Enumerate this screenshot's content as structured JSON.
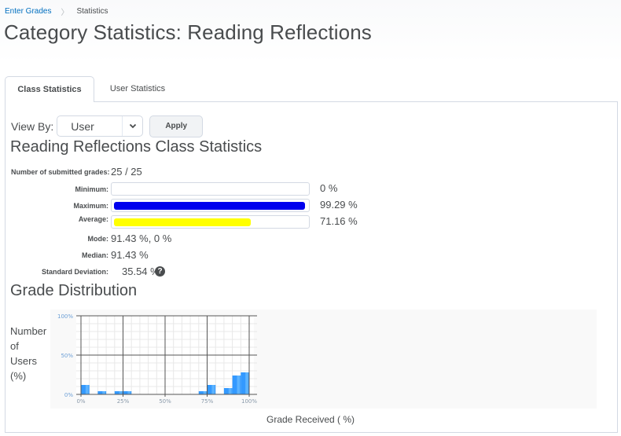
{
  "breadcrumb": {
    "items": [
      {
        "label": "Enter Grades",
        "link": true
      },
      {
        "label": "Statistics",
        "link": false
      }
    ],
    "separator": "〉"
  },
  "page_title": "Category Statistics: Reading Reflections",
  "tabs": [
    {
      "label": "Class Statistics",
      "active": true
    },
    {
      "label": "User Statistics",
      "active": false
    }
  ],
  "view_by": {
    "label": "View By:",
    "selected": "User",
    "apply_label": "Apply"
  },
  "class_stats": {
    "title": "Reading Reflections Class Statistics",
    "submitted_label": "Number of submitted grades:",
    "submitted_value": "25 / 25",
    "minimum_label": "Minimum:",
    "minimum_value": "0 %",
    "minimum_pct": 0,
    "maximum_label": "Maximum:",
    "maximum_value": "99.29 %",
    "maximum_pct": 99.29,
    "maximum_color": "#0000ee",
    "average_label": "Average:",
    "average_value": "71.16 %",
    "average_pct": 71.16,
    "average_color": "#ffff00",
    "mode_label": "Mode:",
    "mode_value": "91.43 %, 0 %",
    "median_label": "Median:",
    "median_value": "91.43 %",
    "std_label": "Standard Deviation:",
    "std_value": "35.54 %",
    "help_icon": "question-circle-icon"
  },
  "distribution": {
    "title": "Grade Distribution",
    "y_title": "Number of Users (%)",
    "y_title_lines": [
      "Number",
      "of",
      "Users",
      "(%)"
    ],
    "x_title": "Grade Received ( %)"
  },
  "chart_data": {
    "type": "bar",
    "title": "Grade Distribution",
    "xlabel": "Grade Received ( %)",
    "ylabel": "Number of Users (%)",
    "x_ticks": [
      "0%",
      "25%",
      "50%",
      "75%",
      "100%"
    ],
    "y_ticks": [
      "0%",
      "50%",
      "100%"
    ],
    "ylim": [
      0,
      100
    ],
    "xlim": [
      0,
      100
    ],
    "bin_width": 5,
    "categories": [
      "0-5",
      "5-10",
      "10-15",
      "15-20",
      "20-25",
      "25-30",
      "30-35",
      "35-40",
      "40-45",
      "45-50",
      "50-55",
      "55-60",
      "60-65",
      "65-70",
      "70-75",
      "75-80",
      "80-85",
      "85-90",
      "90-95",
      "95-100"
    ],
    "values": [
      12,
      0,
      4,
      0,
      4,
      4,
      0,
      0,
      0,
      0,
      0,
      0,
      0,
      0,
      4,
      12,
      0,
      8,
      24,
      28
    ],
    "bar_color": "#3399ff",
    "grid": true
  }
}
